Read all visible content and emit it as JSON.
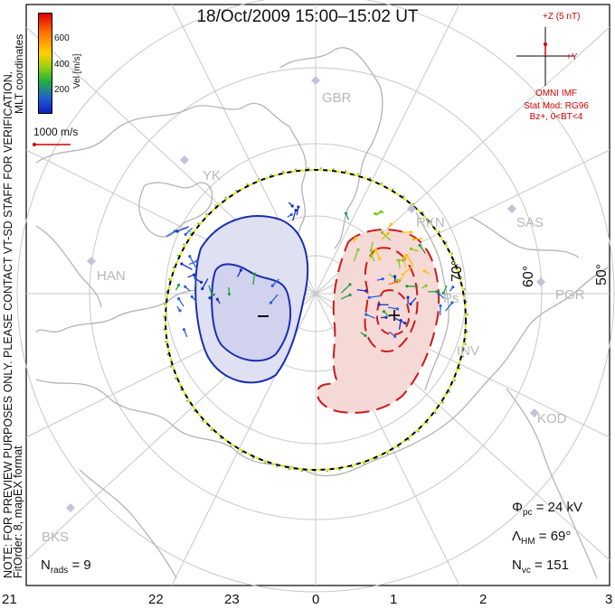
{
  "title": "18/Oct/2009 15:00–15:02 UT",
  "coordinates_label": "MLT coordinates",
  "preview_note": "NOTE: FOR PREVIEW PURPOSES ONLY. PLEASE CONTACT VT-SD STAFF FOR VERIFICATION.",
  "fit_note": "FitOrder: 8, mapEX format",
  "colorbar": {
    "label": "Vel [m/s]",
    "ticks": [
      "600",
      "400",
      "200"
    ]
  },
  "scale_vector": {
    "label": "1000 m/s",
    "color": "#d00000"
  },
  "imf": {
    "clock_z": "+Z (5 nT)",
    "clock_y": "+Y",
    "source": "OMNI IMF",
    "model": "Stat Mod: RG96",
    "condition": "Bz+, 0<BT<4"
  },
  "latitude_labels": [
    "70°",
    "60°",
    "50°"
  ],
  "stations": [
    "GBR",
    "RKN",
    "SAS",
    "PGR",
    "KOD",
    "HAN",
    "BKS"
  ],
  "stations_partial": [
    "YK",
    "INV",
    "Ps"
  ],
  "mlt_hours": [
    "21",
    "22",
    "23",
    "0",
    "1",
    "2",
    "3"
  ],
  "stats": {
    "phi_pc_symbol": "Φ",
    "phi_pc_sub": "pc",
    "phi_pc_value": "= 24 kV",
    "lambda_hm_symbol": "Λ",
    "lambda_hm_sub": "HM",
    "lambda_hm_value": "= 69°",
    "n_vc_symbol": "N",
    "n_vc_sub": "vc",
    "n_vc_value": "= 151",
    "n_rads_symbol": "N",
    "n_rads_sub": "rads",
    "n_rads_value": "= 9"
  },
  "convection_cells": [
    {
      "sign": "−",
      "polarity": "negative",
      "fill": "#dfe0f2",
      "stroke": "#1a2fb0"
    },
    {
      "sign": "+",
      "polarity": "positive",
      "fill": "#f5d9d6",
      "stroke": "#cc1a1a"
    }
  ],
  "colors": {
    "grid": "#c8c8c8",
    "coast": "#b4b4b4",
    "boundary_dash": "#e6e600",
    "imf_red": "#d00000"
  }
}
